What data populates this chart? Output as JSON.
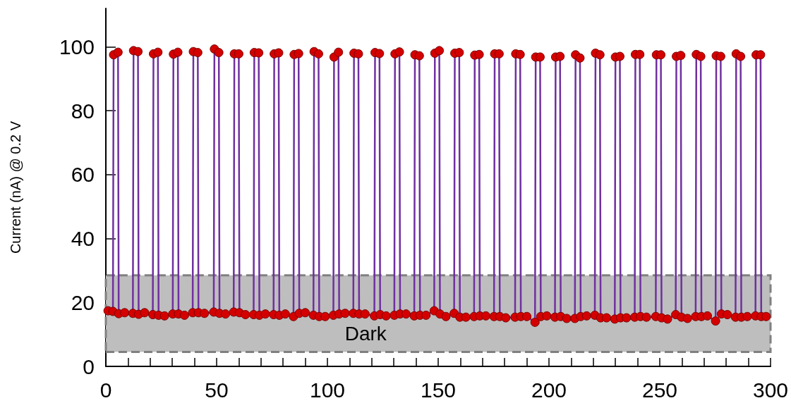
{
  "chart_data": {
    "type": "line",
    "ylabel": "Current (nA) @ 0.2 V",
    "xlim": [
      0,
      300
    ],
    "ylim": [
      0,
      112
    ],
    "xticks": [
      0,
      {
        "value": 10,
        "label": null
      },
      {
        "value": 20,
        "label": null
      },
      {
        "value": 30,
        "label": null
      },
      {
        "value": 40,
        "label": null
      },
      50,
      {
        "value": 60,
        "label": null
      },
      {
        "value": 70,
        "label": null
      },
      {
        "value": 80,
        "label": null
      },
      {
        "value": 90,
        "label": null
      },
      100,
      {
        "value": 110,
        "label": null
      },
      {
        "value": 120,
        "label": null
      },
      {
        "value": 130,
        "label": null
      },
      {
        "value": 140,
        "label": null
      },
      150,
      {
        "value": 160,
        "label": null
      },
      {
        "value": 170,
        "label": null
      },
      {
        "value": 180,
        "label": null
      },
      {
        "value": 190,
        "label": null
      },
      200,
      {
        "value": 210,
        "label": null
      },
      {
        "value": 220,
        "label": null
      },
      {
        "value": 230,
        "label": null
      },
      {
        "value": 240,
        "label": null
      },
      250,
      {
        "value": 260,
        "label": null
      },
      {
        "value": 270,
        "label": null
      },
      {
        "value": 280,
        "label": null
      },
      {
        "value": 290,
        "label": null
      },
      300
    ],
    "yticks": [
      0,
      20,
      40,
      60,
      80,
      100
    ],
    "grid": false,
    "marker": "circle",
    "line_style": "solid",
    "bands": [
      {
        "axis": "y",
        "from": 4.5,
        "to": 28.5,
        "label": "Dark",
        "color": "#bebebe"
      }
    ],
    "series": [
      {
        "color": "#7030a0",
        "x": [
          1,
          3.2,
          3.5,
          5.5,
          5.8,
          8.5,
          12.2,
          12.5,
          14.5,
          14.8,
          17.5,
          21.2,
          21.5,
          23.5,
          23.8,
          26.5,
          30.2,
          30.5,
          32.5,
          32.8,
          35.5,
          39.2,
          39.5,
          41.5,
          41.8,
          44.5,
          48.7,
          49,
          51,
          51.3,
          54,
          57.7,
          58,
          60,
          60.3,
          63,
          66.7,
          67,
          69,
          69.3,
          72,
          75.7,
          76,
          78,
          78.3,
          81,
          84.7,
          85,
          87,
          87.3,
          90,
          93.7,
          94,
          96,
          96.3,
          99,
          102.7,
          103,
          105,
          105.3,
          108,
          111.7,
          112,
          114,
          114.3,
          117,
          121.2,
          121.5,
          123.5,
          123.8,
          126.5,
          130.2,
          130.5,
          132.5,
          132.8,
          135.5,
          139.2,
          139.5,
          141.5,
          141.8,
          144.5,
          148.2,
          148.5,
          150.5,
          150.8,
          153.5,
          157.2,
          157.5,
          159.5,
          159.8,
          162.5,
          166.2,
          166.5,
          168.5,
          168.8,
          171.5,
          175.2,
          175.5,
          177.5,
          177.8,
          180.5,
          184.7,
          185,
          187,
          187.3,
          190,
          193.7,
          194,
          196,
          196.3,
          199,
          202.7,
          203,
          205,
          205.3,
          208,
          211.7,
          212,
          214,
          214.3,
          217,
          220.7,
          221,
          223,
          223.3,
          226,
          229.7,
          230,
          232,
          232.3,
          235,
          238.7,
          239,
          241,
          241.3,
          244,
          248.2,
          248.5,
          250.5,
          250.8,
          253.5,
          257.2,
          257.5,
          259.5,
          259.8,
          262.5,
          266.2,
          266.5,
          268.5,
          268.8,
          271.5,
          275.2,
          275.5,
          277.5,
          277.8,
          280.5,
          284.2,
          284.5,
          286.5,
          286.8,
          289.5,
          293.2,
          293.5,
          295.5,
          295.8,
          298
        ],
        "values": [
          17.4,
          17.2,
          97.5,
          98.3,
          16.5,
          16.8,
          16.6,
          98.8,
          98.5,
          16.3,
          16.8,
          16.2,
          97.8,
          98.3,
          16,
          15.8,
          16.4,
          97.7,
          98.3,
          16.4,
          16,
          16.8,
          98.5,
          98.2,
          16.8,
          16.6,
          17,
          99.3,
          98.2,
          16.6,
          16.4,
          17,
          97.8,
          97.8,
          16.8,
          16.2,
          16.2,
          98.2,
          98.1,
          16,
          16.4,
          16.2,
          97.8,
          98.1,
          16,
          16.4,
          15.6,
          97.6,
          97.9,
          16.6,
          16.8,
          16,
          98.5,
          97.8,
          15.6,
          15.6,
          16,
          96.8,
          98.3,
          16.4,
          16.6,
          16.6,
          98,
          97.8,
          16.4,
          16.4,
          15.8,
          98.2,
          97.9,
          16.2,
          15.8,
          16,
          97.8,
          98.4,
          16.4,
          16.4,
          15.8,
          97.5,
          97.2,
          16,
          16,
          17.4,
          98,
          98.8,
          16.4,
          15.6,
          16.6,
          98,
          98.2,
          15.4,
          15.4,
          15.6,
          97.4,
          97.6,
          15.8,
          15.8,
          15.6,
          97.8,
          97.8,
          15.6,
          15.2,
          15.4,
          97.8,
          97.6,
          15.6,
          15.6,
          13.8,
          96.8,
          96.8,
          15.6,
          15.8,
          15.4,
          96.8,
          97,
          15.6,
          15,
          15,
          97.5,
          96.5,
          15.6,
          15.8,
          16,
          98,
          97.5,
          15.2,
          15.2,
          14.8,
          96.8,
          97,
          15.2,
          15.2,
          15.4,
          97.6,
          97.6,
          15.6,
          15.4,
          15.6,
          97.5,
          97.5,
          15.2,
          14.8,
          16.2,
          97,
          97.3,
          15.4,
          15,
          15.6,
          97.6,
          97,
          15.6,
          15.8,
          14.2,
          97.2,
          97,
          16.4,
          16.2,
          15.4,
          97.8,
          97,
          15.4,
          15.6,
          15.8,
          97.5,
          97.5,
          15.6,
          15.6
        ]
      }
    ]
  }
}
